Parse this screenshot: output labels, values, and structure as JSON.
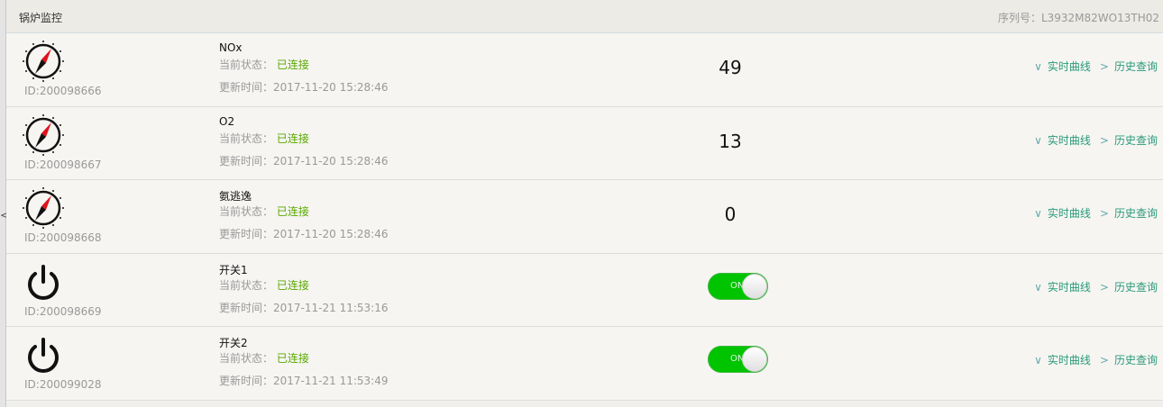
{
  "header": {
    "title": "锅炉监控",
    "serial": "序列号：L3932M82WO13TH02"
  },
  "labels": {
    "status_prefix": "当前状态：",
    "time_prefix": "更新时间：",
    "realtime": "实时曲线",
    "history": "历史查询",
    "realtime_arrow": "∨",
    "history_arrow": ">",
    "left_arrow": "<"
  },
  "devices": [
    {
      "type": "compass-icon",
      "id": "ID:200098666",
      "name": "NOx",
      "status": "已连接",
      "time": "2017-11-20 15:28:46",
      "value": "49"
    },
    {
      "type": "compass-icon",
      "id": "ID:200098667",
      "name": "O2",
      "status": "已连接",
      "time": "2017-11-20 15:28:46",
      "value": "13"
    },
    {
      "type": "compass-icon",
      "id": "ID:200098668",
      "name": "氨逃逸",
      "status": "已连接",
      "time": "2017-11-20 15:28:46",
      "value": "0"
    },
    {
      "type": "power-icon",
      "id": "ID:200098669",
      "name": "开关1",
      "status": "已连接",
      "time": "2017-11-21 11:53:16",
      "toggle": "ON"
    },
    {
      "type": "power-icon",
      "id": "ID:200099028",
      "name": "开关2",
      "status": "已连接",
      "time": "2017-11-21 11:53:49",
      "toggle": "ON"
    }
  ],
  "colors": {
    "connected": "#5aa800",
    "link": "#2a9a7a",
    "toggle_on": "#00c400"
  }
}
